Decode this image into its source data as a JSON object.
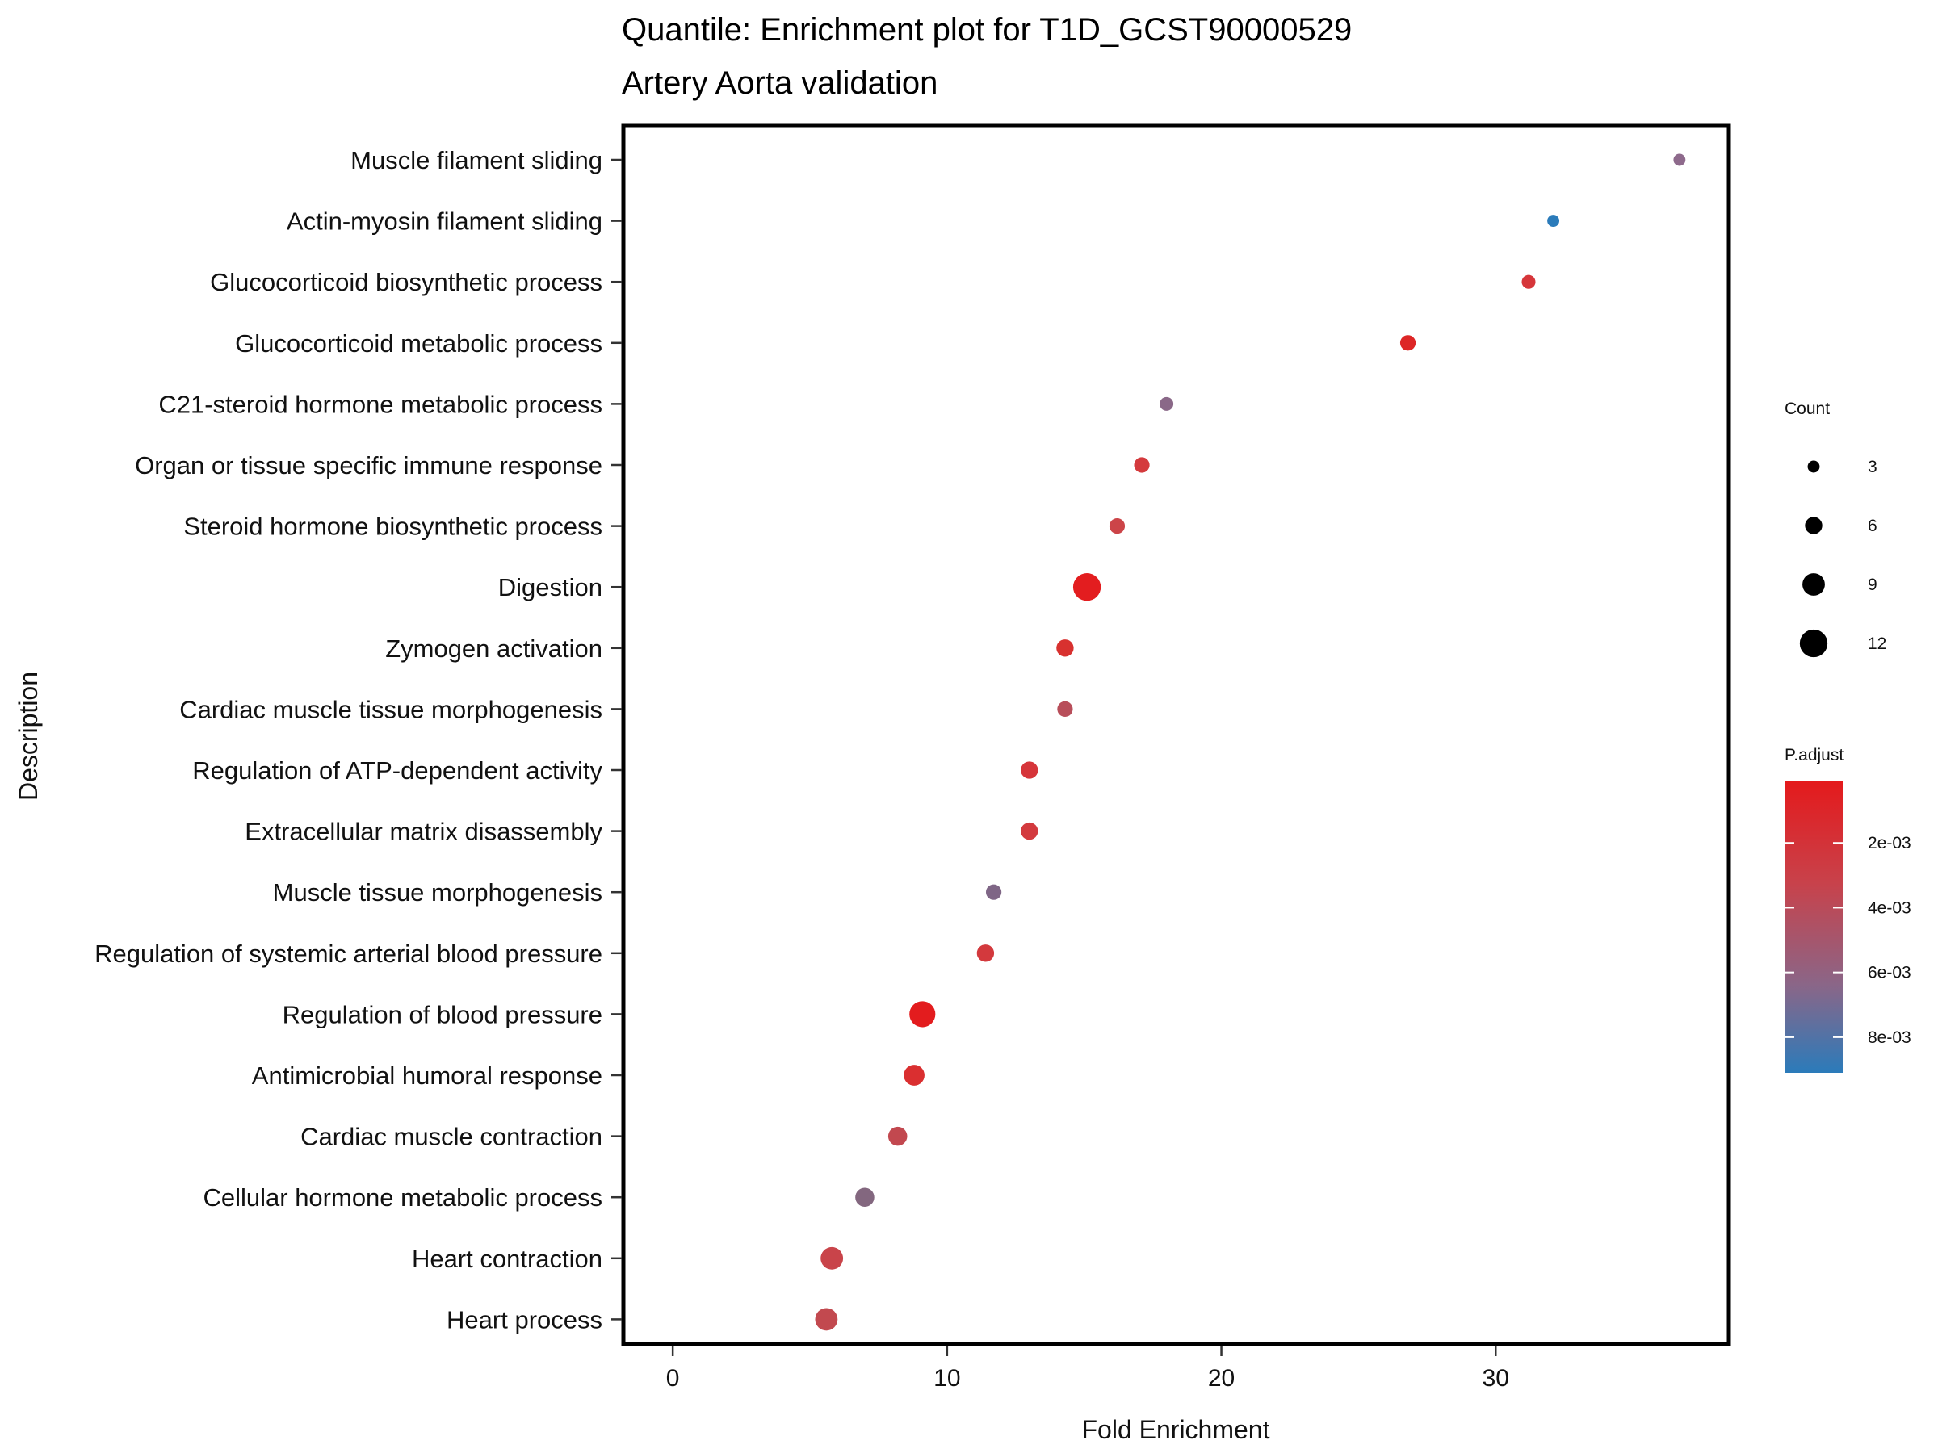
{
  "chart_data": {
    "type": "scatter",
    "title": "Quantile: Enrichment plot for T1D_GCST90000529",
    "subtitle": "Artery Aorta validation",
    "xlabel": "Fold Enrichment",
    "ylabel": "Description",
    "xlim": [
      -1.8,
      38.5
    ],
    "x_ticks": [
      0,
      10,
      20,
      30
    ],
    "grid": false,
    "categories": [
      "Muscle filament sliding",
      "Actin-myosin filament sliding",
      "Glucocorticoid biosynthetic process",
      "Glucocorticoid metabolic process",
      "C21-steroid hormone metabolic process",
      "Organ or tissue specific immune response",
      "Steroid hormone biosynthetic process",
      "Digestion",
      "Zymogen activation",
      "Cardiac muscle tissue morphogenesis",
      "Regulation of ATP-dependent activity",
      "Extracellular matrix disassembly",
      "Muscle tissue morphogenesis",
      "Regulation of systemic arterial blood pressure",
      "Regulation of blood pressure",
      "Antimicrobial humoral response",
      "Cardiac muscle contraction",
      "Cellular hormone metabolic process",
      "Heart contraction",
      "Heart process"
    ],
    "points": [
      {
        "description": "Muscle filament sliding",
        "fold_enrichment": 36.7,
        "count": 3,
        "p_adjust": 0.0058,
        "color": "#8e6a8c"
      },
      {
        "description": "Actin-myosin filament sliding",
        "fold_enrichment": 32.1,
        "count": 3,
        "p_adjust": 0.0089,
        "color": "#2b7bba"
      },
      {
        "description": "Glucocorticoid biosynthetic process",
        "fold_enrichment": 31.2,
        "count": 4,
        "p_adjust": 0.0019,
        "color": "#d6363a"
      },
      {
        "description": "Glucocorticoid metabolic process",
        "fold_enrichment": 26.8,
        "count": 5,
        "p_adjust": 0.0008,
        "color": "#dd2626"
      },
      {
        "description": "C21-steroid hormone metabolic process",
        "fold_enrichment": 18.0,
        "count": 4,
        "p_adjust": 0.006,
        "color": "#8a6888"
      },
      {
        "description": "Organ or tissue specific immune response",
        "fold_enrichment": 17.1,
        "count": 5,
        "p_adjust": 0.002,
        "color": "#d43a3d"
      },
      {
        "description": "Steroid hormone biosynthetic process",
        "fold_enrichment": 16.2,
        "count": 5,
        "p_adjust": 0.0028,
        "color": "#cc4448"
      },
      {
        "description": "Digestion",
        "fold_enrichment": 15.1,
        "count": 12,
        "p_adjust": 0.0002,
        "color": "#e31d1f"
      },
      {
        "description": "Zymogen activation",
        "fold_enrichment": 14.3,
        "count": 6,
        "p_adjust": 0.0015,
        "color": "#d8312f"
      },
      {
        "description": "Cardiac muscle tissue morphogenesis",
        "fold_enrichment": 14.3,
        "count": 5,
        "p_adjust": 0.0042,
        "color": "#b84e5a"
      },
      {
        "description": "Regulation of ATP-dependent activity",
        "fold_enrichment": 13.0,
        "count": 6,
        "p_adjust": 0.0016,
        "color": "#d6353a"
      },
      {
        "description": "Extracellular matrix disassembly",
        "fold_enrichment": 13.0,
        "count": 6,
        "p_adjust": 0.0018,
        "color": "#d33a3e"
      },
      {
        "description": "Muscle tissue morphogenesis",
        "fold_enrichment": 11.7,
        "count": 5,
        "p_adjust": 0.0065,
        "color": "#7f6686"
      },
      {
        "description": "Regulation of systemic arterial blood pressure",
        "fold_enrichment": 11.4,
        "count": 6,
        "p_adjust": 0.0018,
        "color": "#d3393d"
      },
      {
        "description": "Regulation of blood pressure",
        "fold_enrichment": 9.1,
        "count": 11,
        "p_adjust": 0.0002,
        "color": "#e31c1e"
      },
      {
        "description": "Antimicrobial humoral response",
        "fold_enrichment": 8.8,
        "count": 8,
        "p_adjust": 0.0011,
        "color": "#da2f30"
      },
      {
        "description": "Cardiac muscle contraction",
        "fold_enrichment": 8.2,
        "count": 7,
        "p_adjust": 0.0036,
        "color": "#c2484f"
      },
      {
        "description": "Cellular hormone metabolic process",
        "fold_enrichment": 7.0,
        "count": 7,
        "p_adjust": 0.0062,
        "color": "#83677f"
      },
      {
        "description": "Heart contraction",
        "fold_enrichment": 5.8,
        "count": 9,
        "p_adjust": 0.003,
        "color": "#c9444a"
      },
      {
        "description": "Heart process",
        "fold_enrichment": 5.6,
        "count": 9,
        "p_adjust": 0.0034,
        "color": "#c2494f"
      }
    ],
    "size_legend": {
      "title": "Count",
      "entries": [
        {
          "label": "3",
          "value": 3
        },
        {
          "label": "6",
          "value": 6
        },
        {
          "label": "9",
          "value": 9
        },
        {
          "label": "12",
          "value": 12
        }
      ]
    },
    "color_legend": {
      "title": "P.adjust",
      "low_color": "#e41a1c",
      "high_color": "#2b7bba",
      "range": [
        0.0001,
        0.0091
      ],
      "ticks": [
        {
          "label": "2e-03",
          "value": 0.002
        },
        {
          "label": "4e-03",
          "value": 0.004
        },
        {
          "label": "6e-03",
          "value": 0.006
        },
        {
          "label": "8e-03",
          "value": 0.008
        }
      ]
    }
  }
}
